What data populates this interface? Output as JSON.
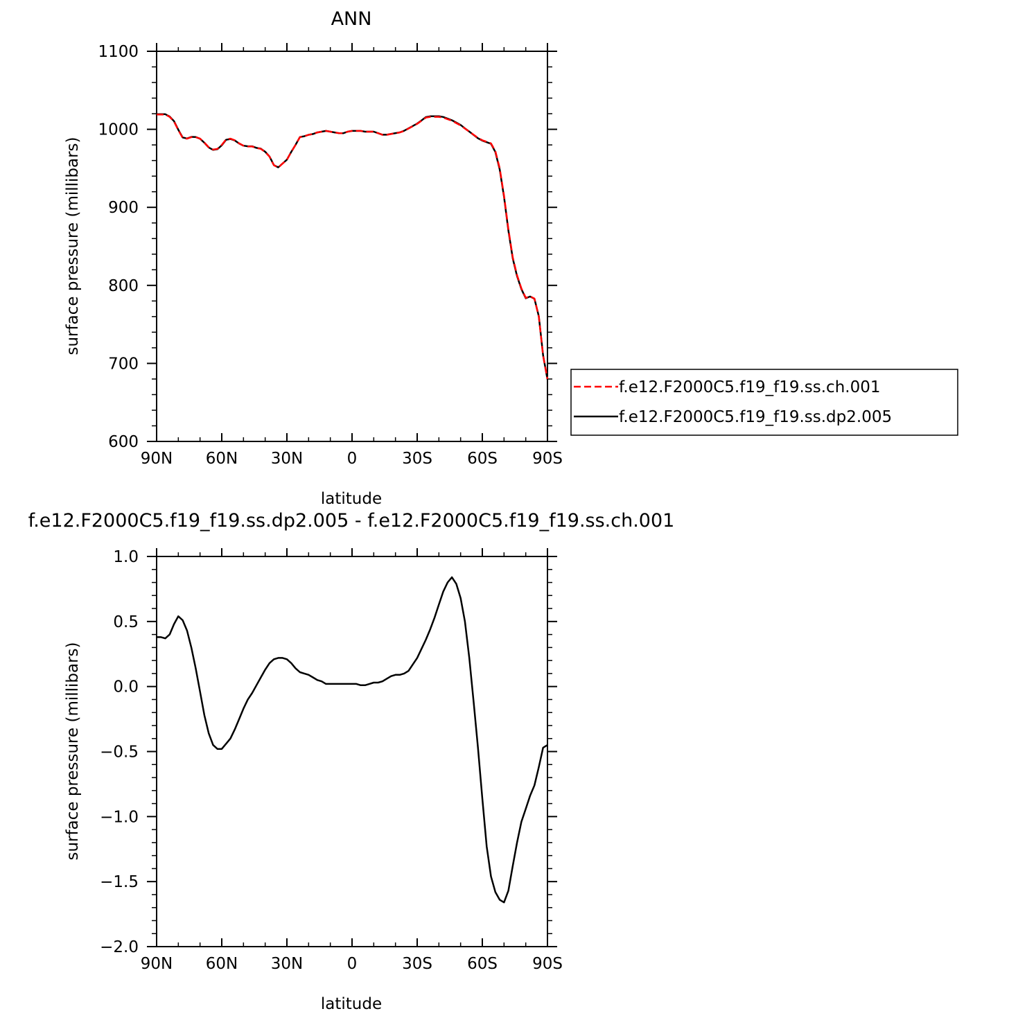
{
  "chart_data": [
    {
      "type": "line",
      "title": "ANN",
      "xlabel": "latitude",
      "ylabel": "surface pressure (millibars)",
      "xlim": [
        90,
        -90
      ],
      "ylim": [
        600,
        1100
      ],
      "xticks": [
        90,
        60,
        30,
        0,
        -30,
        -60,
        -90
      ],
      "xtick_labels": [
        "90N",
        "60N",
        "30N",
        "0",
        "30S",
        "60S",
        "90S"
      ],
      "yticks": [
        600,
        700,
        800,
        900,
        1000,
        1100
      ],
      "ytick_labels": [
        "600",
        "700",
        "800",
        "900",
        "1000",
        "1100"
      ],
      "legend": "right",
      "series": [
        {
          "name": "f.e12.F2000C5.f19_f19.ss.ch.001",
          "color": "#ff0000",
          "dash": "dashed",
          "x": [
            90,
            88,
            86,
            84,
            82,
            80,
            78,
            76,
            74,
            72,
            70,
            68,
            66,
            64,
            62,
            60,
            58,
            56,
            54,
            52,
            50,
            48,
            46,
            44,
            42,
            40,
            38,
            36,
            34,
            32,
            30,
            28,
            26,
            24,
            22,
            20,
            18,
            16,
            14,
            12,
            10,
            8,
            6,
            4,
            2,
            0,
            -2,
            -4,
            -6,
            -8,
            -10,
            -12,
            -14,
            -16,
            -18,
            -20,
            -22,
            -24,
            -26,
            -28,
            -30,
            -32,
            -34,
            -36,
            -38,
            -40,
            -42,
            -44,
            -46,
            -48,
            -50,
            -52,
            -54,
            -56,
            -58,
            -60,
            -62,
            -64,
            -66,
            -68,
            -70,
            -72,
            -74,
            -76,
            -78,
            -80,
            -82,
            -84,
            -86,
            -88,
            -90
          ],
          "y": [
            1019,
            1019,
            1019,
            1016,
            1010,
            999,
            989,
            988,
            990,
            990,
            988,
            983,
            977,
            974,
            975,
            980,
            987,
            988,
            986,
            982,
            979,
            978,
            978,
            976,
            975,
            971,
            965,
            954,
            951,
            956,
            961,
            971,
            980,
            990,
            991,
            993,
            994,
            996,
            997,
            998,
            997,
            996,
            995,
            995,
            997,
            998,
            998,
            998,
            997,
            997,
            997,
            995,
            993,
            993,
            994,
            995,
            996,
            998,
            1001,
            1004,
            1007,
            1011,
            1015,
            1016,
            1016,
            1016,
            1015,
            1013,
            1011,
            1008,
            1005,
            1001,
            997,
            993,
            989,
            986,
            984,
            982,
            972,
            950,
            915,
            872,
            836,
            813,
            796,
            784,
            786,
            783,
            760,
            710,
            680
          ]
        },
        {
          "name": "f.e12.F2000C5.f19_f19.ss.dp2.005",
          "color": "#000000",
          "dash": "solid",
          "x": [
            90,
            88,
            86,
            84,
            82,
            80,
            78,
            76,
            74,
            72,
            70,
            68,
            66,
            64,
            62,
            60,
            58,
            56,
            54,
            52,
            50,
            48,
            46,
            44,
            42,
            40,
            38,
            36,
            34,
            32,
            30,
            28,
            26,
            24,
            22,
            20,
            18,
            16,
            14,
            12,
            10,
            8,
            6,
            4,
            2,
            0,
            -2,
            -4,
            -6,
            -8,
            -10,
            -12,
            -14,
            -16,
            -18,
            -20,
            -22,
            -24,
            -26,
            -28,
            -30,
            -32,
            -34,
            -36,
            -38,
            -40,
            -42,
            -44,
            -46,
            -48,
            -50,
            -52,
            -54,
            -56,
            -58,
            -60,
            -62,
            -64,
            -66,
            -68,
            -70,
            -72,
            -74,
            -76,
            -78,
            -80,
            -82,
            -84,
            -86,
            -88,
            -90
          ],
          "y": [
            1019.4,
            1019.4,
            1019.4,
            1016.4,
            1010.5,
            999.5,
            989.5,
            988.3,
            990.3,
            990.1,
            987.9,
            982.8,
            976.7,
            973.6,
            974.5,
            979.5,
            986.6,
            987.6,
            985.7,
            981.8,
            979.0,
            978.2,
            978.2,
            976.2,
            975.2,
            971.2,
            965.2,
            954.2,
            951.2,
            956.1,
            961.1,
            971.1,
            980.1,
            990.1,
            991.1,
            993.0,
            994.0,
            996.0,
            997.0,
            998.0,
            997.0,
            996.0,
            995.0,
            995.0,
            997.0,
            998.0,
            998.0,
            998.0,
            997.0,
            997.0,
            997.0,
            995.0,
            993.1,
            993.1,
            994.1,
            995.1,
            996.1,
            998.1,
            1001.2,
            1004.3,
            1007.4,
            1011.5,
            1015.6,
            1016.7,
            1016.8,
            1016.8,
            1015.8,
            1013.7,
            1011.6,
            1008.6,
            1005.6,
            1001.2,
            997.1,
            992.8,
            988.5,
            985.5,
            983.5,
            981.5,
            971.0,
            948.5,
            913.6,
            870.4,
            834.6,
            811.9,
            795.2,
            783.5,
            785.7,
            782.9,
            760.5,
            710.5,
            679.5
          ]
        }
      ]
    },
    {
      "type": "line",
      "title": "f.e12.F2000C5.f19_f19.ss.dp2.005 - f.e12.F2000C5.f19_f19.ss.ch.001",
      "xlabel": "latitude",
      "ylabel": "surface pressure (millibars)",
      "xlim": [
        90,
        -90
      ],
      "ylim": [
        -2.0,
        1.0
      ],
      "xticks": [
        90,
        60,
        30,
        0,
        -30,
        -60,
        -90
      ],
      "xtick_labels": [
        "90N",
        "60N",
        "30N",
        "0",
        "30S",
        "60S",
        "90S"
      ],
      "yticks": [
        -2.0,
        -1.5,
        -1.0,
        -0.5,
        0.0,
        0.5,
        1.0
      ],
      "ytick_labels": [
        "−2.0",
        "−1.5",
        "−1.0",
        "−0.5",
        "0.0",
        "0.5",
        "1.0"
      ],
      "series": [
        {
          "color": "#000000",
          "dash": "solid",
          "x": [
            90,
            88,
            86,
            84,
            82,
            80,
            78,
            76,
            74,
            72,
            70,
            68,
            66,
            64,
            62,
            60,
            58,
            56,
            54,
            52,
            50,
            48,
            46,
            44,
            42,
            40,
            38,
            36,
            34,
            32,
            30,
            28,
            26,
            24,
            22,
            20,
            18,
            16,
            14,
            12,
            10,
            8,
            6,
            4,
            2,
            0,
            -2,
            -4,
            -6,
            -8,
            -10,
            -12,
            -14,
            -16,
            -18,
            -20,
            -22,
            -24,
            -26,
            -28,
            -30,
            -32,
            -34,
            -36,
            -38,
            -40,
            -42,
            -44,
            -46,
            -48,
            -50,
            -52,
            -54,
            -56,
            -58,
            -60,
            -62,
            -64,
            -66,
            -68,
            -70,
            -72,
            -74,
            -76,
            -78,
            -80,
            -82,
            -84,
            -86,
            -88,
            -90
          ],
          "y": [
            0.38,
            0.38,
            0.37,
            0.4,
            0.48,
            0.54,
            0.51,
            0.43,
            0.3,
            0.14,
            -0.04,
            -0.22,
            -0.36,
            -0.45,
            -0.48,
            -0.48,
            -0.44,
            -0.4,
            -0.33,
            -0.25,
            -0.17,
            -0.1,
            -0.05,
            0.01,
            0.07,
            0.13,
            0.18,
            0.21,
            0.22,
            0.22,
            0.21,
            0.18,
            0.14,
            0.11,
            0.1,
            0.09,
            0.07,
            0.05,
            0.04,
            0.02,
            0.02,
            0.02,
            0.02,
            0.02,
            0.02,
            0.02,
            0.02,
            0.01,
            0.01,
            0.02,
            0.03,
            0.03,
            0.04,
            0.06,
            0.08,
            0.09,
            0.09,
            0.1,
            0.12,
            0.17,
            0.22,
            0.29,
            0.36,
            0.44,
            0.53,
            0.63,
            0.73,
            0.8,
            0.84,
            0.79,
            0.68,
            0.5,
            0.22,
            -0.12,
            -0.47,
            -0.86,
            -1.23,
            -1.46,
            -1.58,
            -1.64,
            -1.66,
            -1.57,
            -1.38,
            -1.2,
            -1.04,
            -0.94,
            -0.84,
            -0.76,
            -0.62,
            -0.47,
            -0.45
          ]
        }
      ]
    }
  ]
}
